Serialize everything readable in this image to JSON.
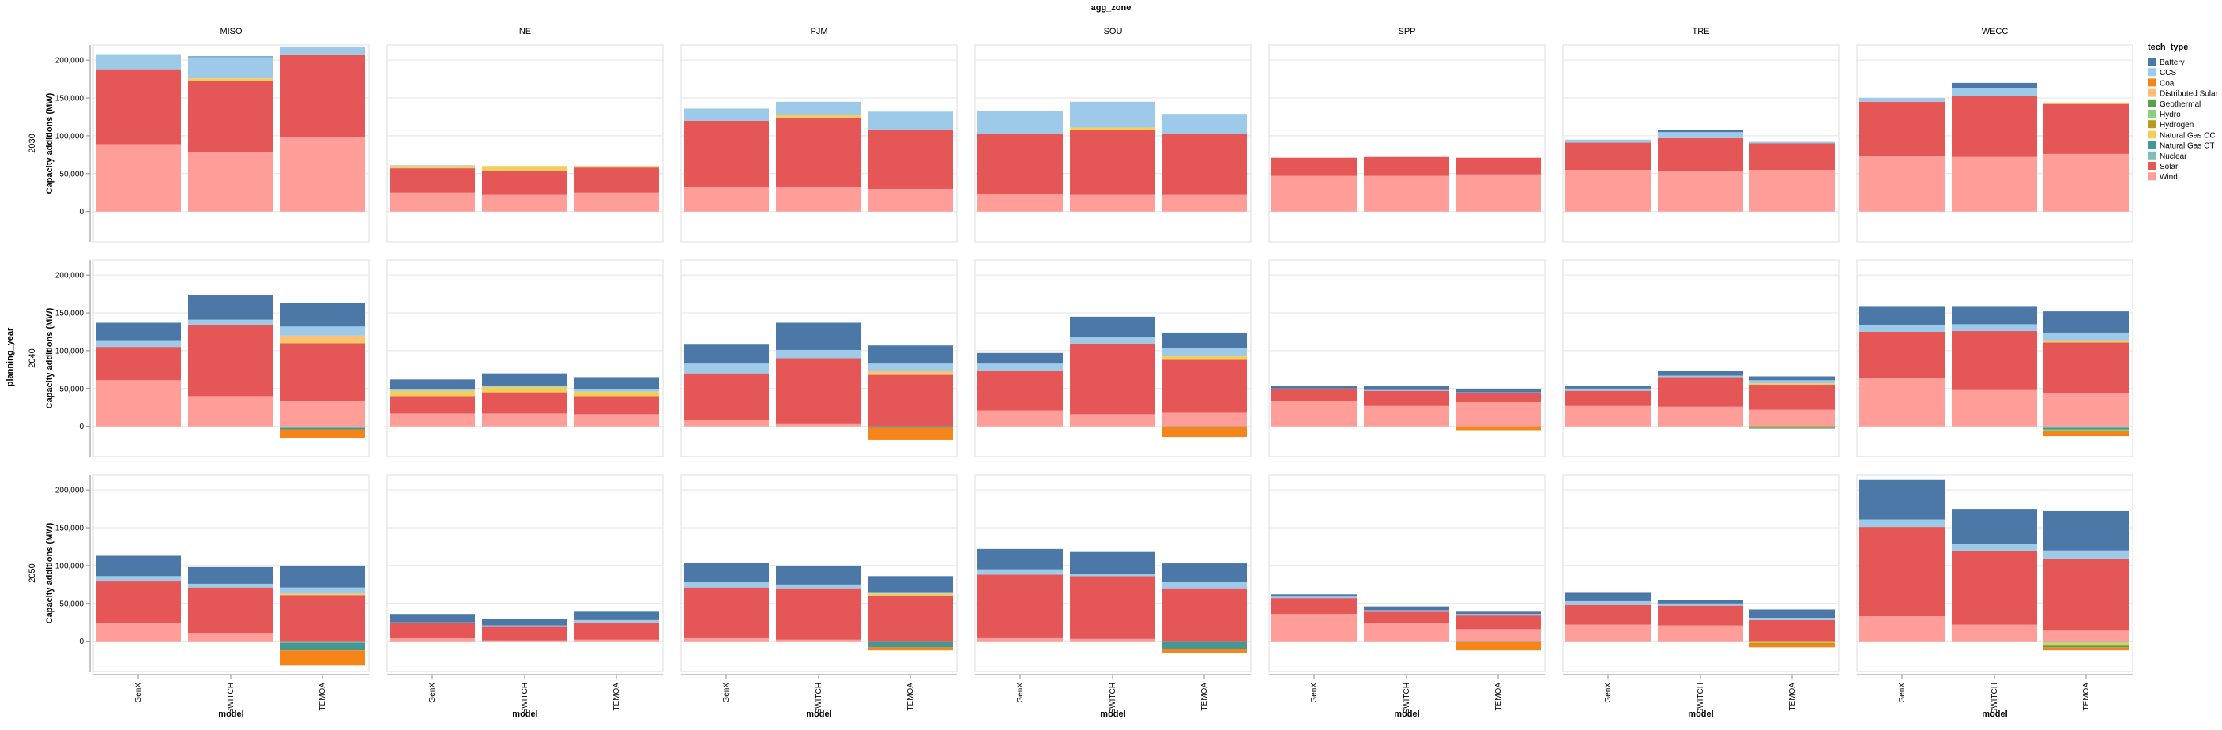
{
  "chart_data": {
    "type": "bar",
    "stacked": true,
    "column_facet_title": "agg_zone",
    "row_facet_title": "planning_year",
    "ylabel": "Capacity additions (MW)",
    "xlabel": "model",
    "ylim": [
      -40000,
      220000
    ],
    "yticks": [
      0,
      50000,
      100000,
      150000,
      200000
    ],
    "ytick_labels": [
      "0",
      "50,000",
      "100,000",
      "150,000",
      "200,000"
    ],
    "grid": true,
    "legend_position": "right",
    "legend_title": "tech_type",
    "zones": [
      "MISO",
      "NE",
      "PJM",
      "SOU",
      "SPP",
      "TRE",
      "WECC"
    ],
    "years": [
      "2030",
      "2040",
      "2050"
    ],
    "models": [
      "GenX",
      "SWITCH",
      "TEMOA"
    ],
    "tech_types": [
      "Battery",
      "CCS",
      "Coal",
      "Distributed Solar",
      "Geothermal",
      "Hydro",
      "Hydrogen",
      "Natural Gas CC",
      "Natural Gas CT",
      "Nuclear",
      "Solar",
      "Wind"
    ],
    "colors": {
      "Battery": "#4c78a8",
      "CCS": "#9ecae9",
      "Coal": "#f58518",
      "Distributed Solar": "#ffbf79",
      "Geothermal": "#54a24b",
      "Hydro": "#88d27a",
      "Hydrogen": "#b79a20",
      "Natural Gas CC": "#f2cf5b",
      "Natural Gas CT": "#439894",
      "Nuclear": "#83bcb6",
      "Solar": "#e45756",
      "Wind": "#ff9d98"
    },
    "values": {
      "2030": {
        "MISO": {
          "GenX": {
            "Wind": 89000,
            "Solar": 99000,
            "CCS": 20000
          },
          "SWITCH": {
            "Wind": 78000,
            "Solar": 95000,
            "Natural Gas CC": 3000,
            "CCS": 28000,
            "Battery": 1000
          },
          "TEMOA": {
            "Wind": 98000,
            "Solar": 109000,
            "CCS": 11000
          }
        },
        "NE": {
          "GenX": {
            "Wind": 25000,
            "Solar": 32000,
            "Natural Gas CC": 3000,
            "CCS": 1000
          },
          "SWITCH": {
            "Wind": 22000,
            "Solar": 32000,
            "Natural Gas CC": 6000
          },
          "TEMOA": {
            "Wind": 25000,
            "Solar": 33000,
            "Natural Gas CC": 2000
          }
        },
        "PJM": {
          "GenX": {
            "Wind": 32000,
            "Solar": 88000,
            "CCS": 16000
          },
          "SWITCH": {
            "Wind": 32000,
            "Solar": 92000,
            "Natural Gas CC": 4000,
            "CCS": 17000
          },
          "TEMOA": {
            "Wind": 30000,
            "Solar": 78000,
            "CCS": 24000
          }
        },
        "SOU": {
          "GenX": {
            "Wind": 23000,
            "Solar": 79000,
            "CCS": 31000
          },
          "SWITCH": {
            "Wind": 22000,
            "Solar": 86000,
            "Natural Gas CC": 3000,
            "CCS": 34000
          },
          "TEMOA": {
            "Wind": 22000,
            "Solar": 80000,
            "CCS": 27000
          }
        },
        "SPP": {
          "GenX": {
            "Wind": 47000,
            "Solar": 24000
          },
          "SWITCH": {
            "Wind": 47000,
            "Solar": 25000
          },
          "TEMOA": {
            "Wind": 49000,
            "Solar": 22000
          }
        },
        "TRE": {
          "GenX": {
            "Wind": 55000,
            "Solar": 36000,
            "CCS": 4000
          },
          "SWITCH": {
            "Wind": 53000,
            "Solar": 44000,
            "CCS": 8000,
            "Battery": 3000
          },
          "TEMOA": {
            "Wind": 55000,
            "Solar": 35000,
            "CCS": 2000
          }
        },
        "WECC": {
          "GenX": {
            "Wind": 73000,
            "Solar": 72000,
            "CCS": 5000
          },
          "SWITCH": {
            "Wind": 72000,
            "Solar": 81000,
            "CCS": 10000,
            "Battery": 7000
          },
          "TEMOA": {
            "Wind": 76000,
            "Solar": 66000,
            "Natural Gas CC": 2000
          }
        }
      },
      "2040": {
        "MISO": {
          "GenX": {
            "Wind": 61000,
            "Solar": 44000,
            "CCS": 9000,
            "Battery": 23000
          },
          "SWITCH": {
            "Wind": 40000,
            "Solar": 94000,
            "CCS": 7000,
            "Battery": 33000
          },
          "TEMOA": {
            "Wind": 33000,
            "Solar": 77000,
            "Distributed Solar": 7000,
            "Natural Gas CC": 3000,
            "CCS": 12000,
            "Battery": 31000,
            "Nuclear": -2000,
            "Natural Gas CT": -2000,
            "Coal": -11000
          }
        },
        "NE": {
          "GenX": {
            "Wind": 17000,
            "Solar": 23000,
            "Natural Gas CC": 7000,
            "CCS": 2000,
            "Battery": 13000
          },
          "SWITCH": {
            "Wind": 17000,
            "Solar": 28000,
            "Natural Gas CC": 7000,
            "CCS": 2000,
            "Battery": 16000
          },
          "TEMOA": {
            "Wind": 16000,
            "Solar": 24000,
            "Natural Gas CC": 6000,
            "CCS": 3000,
            "Battery": 16000
          }
        },
        "PJM": {
          "GenX": {
            "Wind": 8000,
            "Solar": 62000,
            "CCS": 13000,
            "Battery": 25000
          },
          "SWITCH": {
            "Wind": 3000,
            "Solar": 87000,
            "CCS": 11000,
            "Battery": 36000
          },
          "TEMOA": {
            "Wind": 0,
            "Solar": 68000,
            "Distributed Solar": 3000,
            "Natural Gas CC": 2000,
            "CCS": 10000,
            "Battery": 24000,
            "Natural Gas CT": -2000,
            "Coal": -16000
          }
        },
        "SOU": {
          "GenX": {
            "Wind": 21000,
            "Solar": 53000,
            "CCS": 9000,
            "Battery": 14000
          },
          "SWITCH": {
            "Wind": 16000,
            "Solar": 93000,
            "CCS": 9000,
            "Battery": 27000
          },
          "TEMOA": {
            "Wind": 18000,
            "Solar": 70000,
            "Natural Gas CC": 5000,
            "CCS": 10000,
            "Battery": 21000,
            "Natural Gas CT": -1000,
            "Coal": -13000
          }
        },
        "SPP": {
          "GenX": {
            "Wind": 34000,
            "Solar": 15000,
            "CCS": 1000,
            "Battery": 3000
          },
          "SWITCH": {
            "Wind": 27000,
            "Solar": 20000,
            "CCS": 1000,
            "Battery": 5000
          },
          "TEMOA": {
            "Wind": 32000,
            "Solar": 12000,
            "CCS": 1000,
            "Battery": 4000,
            "Hydrogen": -1000,
            "Coal": -4000
          }
        },
        "TRE": {
          "GenX": {
            "Wind": 27000,
            "Solar": 20000,
            "CCS": 3000,
            "Battery": 3000
          },
          "SWITCH": {
            "Wind": 26000,
            "Solar": 39000,
            "CCS": 2000,
            "Battery": 6000
          },
          "TEMOA": {
            "Wind": 22000,
            "Solar": 33000,
            "Natural Gas CC": 2000,
            "CCS": 4000,
            "Battery": 5000,
            "Hydrogen": -1000,
            "Geothermal": -1000,
            "Natural Gas CT": -1000
          }
        },
        "WECC": {
          "GenX": {
            "Wind": 64000,
            "Solar": 61000,
            "CCS": 9000,
            "Battery": 25000
          },
          "SWITCH": {
            "Wind": 48000,
            "Solar": 78000,
            "CCS": 9000,
            "Battery": 24000
          },
          "TEMOA": {
            "Wind": 44000,
            "Solar": 67000,
            "Natural Gas CC": 3000,
            "CCS": 10000,
            "Battery": 28000,
            "Nuclear": -2000,
            "Hydro": -2000,
            "Natural Gas CT": -2000,
            "Coal": -7000
          }
        }
      },
      "2050": {
        "MISO": {
          "GenX": {
            "Wind": 24000,
            "Solar": 55000,
            "CCS": 7000,
            "Battery": 27000
          },
          "SWITCH": {
            "Wind": 11000,
            "Solar": 60000,
            "CCS": 5000,
            "Battery": 22000
          },
          "TEMOA": {
            "Wind": 0,
            "Solar": 61000,
            "Natural Gas CC": 2000,
            "CCS": 8000,
            "Battery": 29000,
            "Nuclear": -2000,
            "Natural Gas CT": -10000,
            "Coal": -20000
          }
        },
        "NE": {
          "GenX": {
            "Wind": 4000,
            "Solar": 20000,
            "CCS": 1000,
            "Battery": 11000
          },
          "SWITCH": {
            "Wind": 1000,
            "Solar": 19000,
            "CCS": 1000,
            "Battery": 9000
          },
          "TEMOA": {
            "Wind": 2000,
            "Solar": 23000,
            "CCS": 3000,
            "Battery": 11000
          }
        },
        "PJM": {
          "GenX": {
            "Wind": 5000,
            "Solar": 66000,
            "CCS": 7000,
            "Battery": 26000
          },
          "SWITCH": {
            "Wind": 2000,
            "Solar": 68000,
            "CCS": 5000,
            "Battery": 25000
          },
          "TEMOA": {
            "Wind": 0,
            "Solar": 60000,
            "Natural Gas CC": 3000,
            "CCS": 2000,
            "Battery": 21000,
            "Natural Gas CT": -8000,
            "Coal": -4000
          }
        },
        "SOU": {
          "GenX": {
            "Wind": 5000,
            "Solar": 83000,
            "CCS": 7000,
            "Battery": 27000
          },
          "SWITCH": {
            "Wind": 3000,
            "Solar": 83000,
            "CCS": 3000,
            "Battery": 29000
          },
          "TEMOA": {
            "Wind": 0,
            "Solar": 70000,
            "CCS": 8000,
            "Battery": 25000,
            "Natural Gas CT": -10000,
            "Coal": -6000
          }
        },
        "SPP": {
          "GenX": {
            "Wind": 36000,
            "Solar": 21000,
            "CCS": 2000,
            "Battery": 3000
          },
          "SWITCH": {
            "Wind": 24000,
            "Solar": 15000,
            "CCS": 2000,
            "Battery": 5000
          },
          "TEMOA": {
            "Wind": 16000,
            "Solar": 18000,
            "CCS": 2000,
            "Battery": 3000,
            "Natural Gas CT": -1000,
            "Coal": -11000
          }
        },
        "TRE": {
          "GenX": {
            "Wind": 22000,
            "Solar": 26000,
            "CCS": 5000,
            "Battery": 12000
          },
          "SWITCH": {
            "Wind": 21000,
            "Solar": 26000,
            "CCS": 3000,
            "Battery": 4000
          },
          "TEMOA": {
            "Wind": 0,
            "Solar": 28000,
            "CCS": 3000,
            "Battery": 11000,
            "Hydrogen": -2000,
            "Natural Gas CC": -2000,
            "Coal": -4000
          }
        },
        "WECC": {
          "GenX": {
            "Wind": 33000,
            "Solar": 118000,
            "CCS": 10000,
            "Battery": 53000
          },
          "SWITCH": {
            "Wind": 22000,
            "Solar": 97000,
            "CCS": 10000,
            "Battery": 46000
          },
          "TEMOA": {
            "Wind": 14000,
            "Solar": 95000,
            "CCS": 11000,
            "Battery": 52000,
            "Nuclear": -2000,
            "Hydro": -2000,
            "Geothermal": -2000,
            "Natural Gas CC": -2000,
            "Coal": -4000
          }
        }
      }
    }
  }
}
